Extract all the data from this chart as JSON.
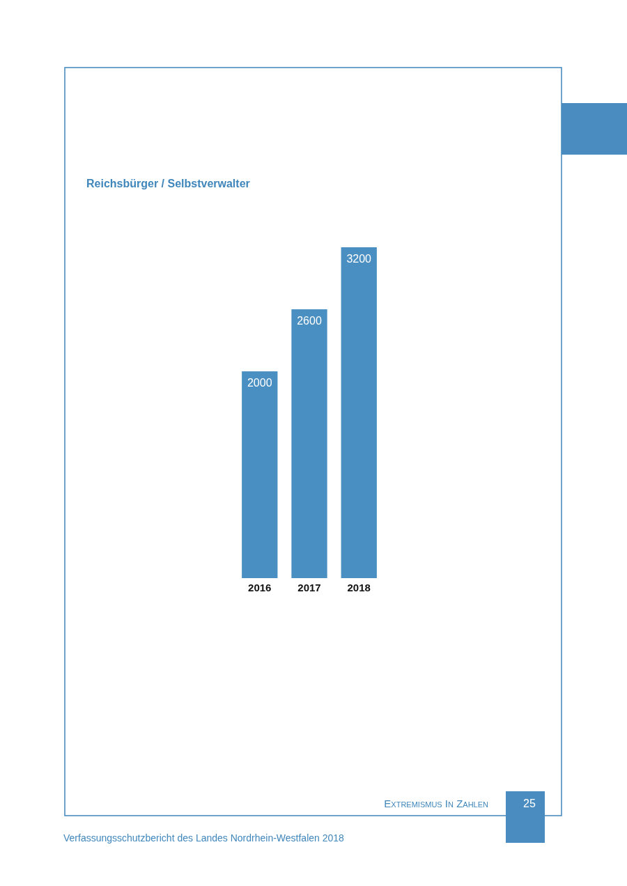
{
  "chart_data": {
    "type": "bar",
    "title": "Reichsbürger / Selbstverwalter",
    "categories": [
      "2016",
      "2017",
      "2018"
    ],
    "values": [
      2000,
      2600,
      3200
    ],
    "color": "#4a8fc2",
    "data_labels": true,
    "annotations": [
      "Extremismus In Zahlen",
      "25",
      "Verfassungsschutzbericht des Landes Nordrhein-Westfalen 2018"
    ]
  }
}
